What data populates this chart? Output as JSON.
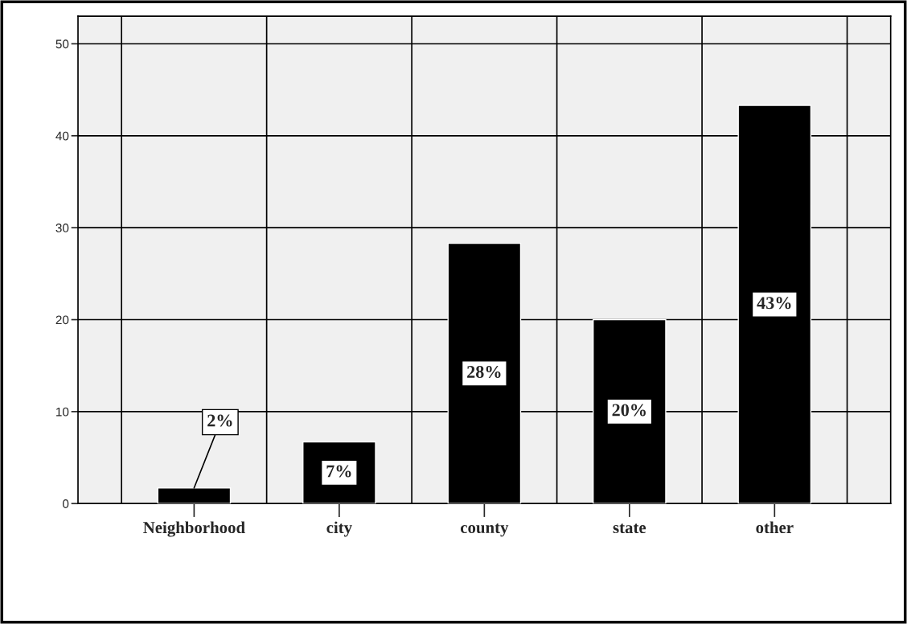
{
  "chart_data": {
    "type": "bar",
    "categories": [
      "Neighborhood",
      "city",
      "county",
      "state",
      "other"
    ],
    "values": [
      1.7,
      6.7,
      28.3,
      20.0,
      43.3
    ],
    "value_labels": [
      "2%",
      "7%",
      "28%",
      "20%",
      "43%"
    ],
    "color": "#000000",
    "ylim": [
      0,
      53
    ],
    "yticks": [
      0,
      10,
      20,
      30,
      40,
      50
    ],
    "grid": true
  }
}
